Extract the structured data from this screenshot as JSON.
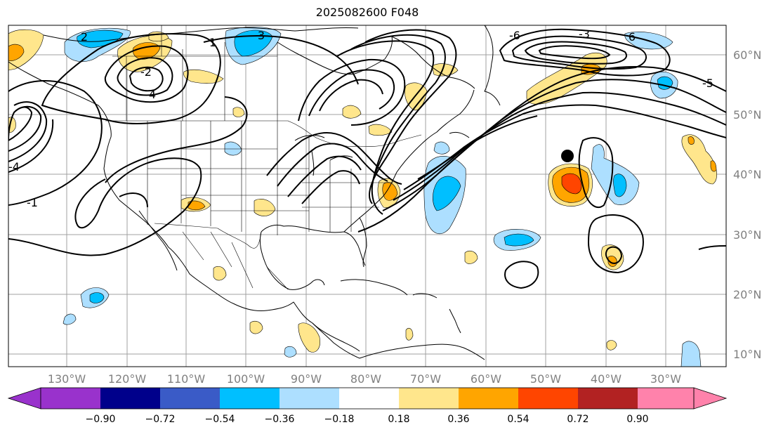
{
  "title": "2025082600 F048",
  "colors": {
    "ocean": "#ffffff",
    "land": "#ffffff",
    "gridline": "#a0a0a0",
    "axis_label": "#808080",
    "contour": "#000000",
    "bins": [
      "#9932CC",
      "#00008B",
      "#3A5BC7",
      "#00BFFF",
      "#ADDFFF",
      "#FFFFFF",
      "#FFE68C",
      "#FFA500",
      "#FF4500",
      "#B22222",
      "#FF82AB"
    ]
  },
  "longitude_labels": [
    "130°W",
    "120°W",
    "110°W",
    "100°W",
    "90°W",
    "80°W",
    "70°W",
    "60°W",
    "50°W",
    "40°W",
    "30°W"
  ],
  "latitude_labels": [
    "60°N",
    "50°N",
    "40°N",
    "30°N",
    "20°N",
    "10°N"
  ],
  "colorbar": {
    "tick_labels": [
      "−0.90",
      "−0.72",
      "−0.54",
      "−0.36",
      "−0.18",
      "0.18",
      "0.36",
      "0.54",
      "0.72",
      "0.90"
    ],
    "extend": "both"
  },
  "contour_labels": [
    "1",
    "2",
    "3",
    "4",
    "6",
    "-1",
    "-2",
    "-3",
    "-4",
    "-5",
    "-6"
  ],
  "marker": {
    "type": "black dot",
    "lon": -46.5,
    "lat": 43
  }
}
